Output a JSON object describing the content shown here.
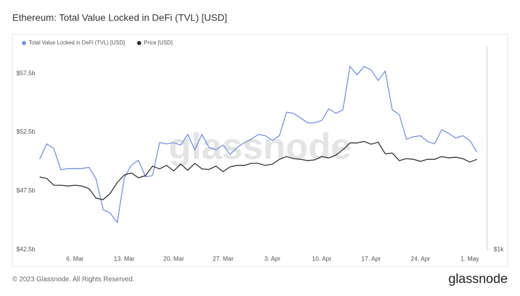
{
  "chart_data": {
    "type": "line",
    "title": "Ethereum: Total Value Locked in DeFi (TVL) [USD]",
    "watermark": "glassnode",
    "categories": [
      null,
      null,
      null,
      null,
      null,
      "6. Mar",
      null,
      null,
      null,
      null,
      null,
      null,
      "13. Mar",
      null,
      null,
      null,
      null,
      null,
      null,
      "20. Mar",
      null,
      null,
      null,
      null,
      null,
      null,
      "27. Mar",
      null,
      null,
      null,
      null,
      null,
      null,
      "3. Apr",
      null,
      null,
      null,
      null,
      null,
      null,
      "10. Apr",
      null,
      null,
      null,
      null,
      null,
      null,
      "17. Apr",
      null,
      null,
      null,
      null,
      null,
      null,
      "24. Apr",
      null,
      null,
      null,
      null,
      null,
      null,
      "1. May",
      null
    ],
    "series": [
      {
        "name": "Total Value Locked in DeFi (TVL) [USD]",
        "color": "#6e8ee8",
        "values": [
          50.2,
          51.5,
          51.1,
          49.3,
          49.4,
          49.4,
          49.4,
          49.5,
          48.5,
          45.9,
          45.6,
          44.8,
          48.6,
          49.7,
          50.1,
          48.7,
          48.8,
          51.6,
          51.5,
          51.6,
          51.4,
          52.3,
          51.0,
          52.3,
          51.2,
          51.0,
          51.4,
          50.6,
          51.2,
          51.6,
          51.9,
          52.3,
          52.2,
          51.8,
          52.2,
          54.2,
          54.1,
          53.7,
          53.3,
          53.3,
          53.5,
          54.5,
          54.1,
          54.4,
          58.1,
          57.4,
          58.1,
          57.8,
          56.9,
          57.7,
          54.4,
          54.0,
          51.9,
          52.1,
          52.2,
          51.7,
          51.5,
          52.7,
          52.4,
          52.0,
          52.2,
          51.8,
          50.8
        ]
      },
      {
        "name": "Price [USD]",
        "color": "#2b2b2b",
        "axis": "y2",
        "values": [
          1500,
          1490,
          1443,
          1443,
          1438,
          1443,
          1438,
          1420,
          1354,
          1344,
          1387,
          1462,
          1514,
          1528,
          1495,
          1509,
          1575,
          1556,
          1580,
          1542,
          1589,
          1547,
          1594,
          1556,
          1552,
          1575,
          1537,
          1570,
          1580,
          1580,
          1594,
          1594,
          1580,
          1589,
          1622,
          1641,
          1627,
          1622,
          1613,
          1618,
          1641,
          1632,
          1651,
          1688,
          1735,
          1735,
          1745,
          1726,
          1740,
          1660,
          1665,
          1613,
          1627,
          1622,
          1608,
          1622,
          1622,
          1641,
          1632,
          1636,
          1627,
          1603,
          1622
        ]
      }
    ],
    "ylim": [
      42.5,
      59.8
    ],
    "yticks": [
      {
        "value": 42.5,
        "label": "$42.5b"
      },
      {
        "value": 47.5,
        "label": "$47.5b"
      },
      {
        "value": 52.5,
        "label": "$52.5b"
      },
      {
        "value": 57.5,
        "label": "$57.5b"
      }
    ],
    "y2lim": [
      1000,
      2400
    ],
    "y2ticks": [
      {
        "value": 1000,
        "label": "$1k"
      }
    ],
    "grid": false,
    "legend": "top-left"
  },
  "footer": {
    "copyright": "© 2023 Glassnode. All Rights Reserved.",
    "logo": "glassnode"
  }
}
